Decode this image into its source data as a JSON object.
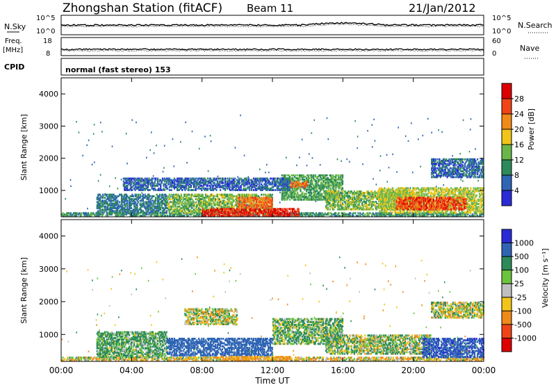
{
  "header": {
    "station": "Zhongshan Station (fitACF)",
    "beam": "Beam 11",
    "date": "21/Jan/2012"
  },
  "status_panels": {
    "nsky_label": "N.Sky",
    "nsearch_label": "N.Search",
    "count_ticks_top": "10^5",
    "count_ticks_bottom": "10^0",
    "freq_label": "Freq.",
    "freq_unit": "[MHz]",
    "freq_ticks": [
      "18",
      "8"
    ],
    "nave_label": "Nave",
    "nave_ticks": [
      "60",
      "0"
    ],
    "cpid_label": "CPID",
    "cpid_value": "normal (fast stereo) 153"
  },
  "colors": {
    "power_scale": [
      "#2a2ad6",
      "#2f65b4",
      "#2d8a5a",
      "#6bb64a",
      "#f0c419",
      "#f08a18",
      "#f04418",
      "#dd0000"
    ],
    "velocity_scale": [
      "#dd0000",
      "#f04418",
      "#f08a18",
      "#f0c419",
      "#bfbfbf",
      "#6bc43c",
      "#2d8a5a",
      "#2f65b4",
      "#2a2ad6"
    ]
  },
  "chart_data": [
    {
      "type": "heatmap",
      "title": "",
      "xlabel": "Time UT",
      "ylabel": "Slant Range [km]",
      "x_ticks": [
        "00:00",
        "04:00",
        "08:00",
        "12:00",
        "16:00",
        "20:00",
        "00:00"
      ],
      "xlim": [
        0,
        24
      ],
      "ylim": [
        180,
        4500
      ],
      "y_ticks": [
        "1000",
        "2000",
        "3000",
        "4000"
      ],
      "colorbar": {
        "label": "Power [dB]",
        "ticks": [
          "4",
          "8",
          "12",
          "16",
          "20",
          "24",
          "28"
        ],
        "range": [
          0,
          30
        ]
      },
      "regions": [
        {
          "t0": 0.0,
          "t1": 24.0,
          "r0": 200,
          "r1": 320,
          "value": 10
        },
        {
          "t0": 2.0,
          "t1": 6.0,
          "r0": 300,
          "r1": 900,
          "value": 8
        },
        {
          "t0": 6.0,
          "t1": 12.0,
          "r0": 300,
          "r1": 900,
          "value": 14
        },
        {
          "t0": 8.0,
          "t1": 13.5,
          "r0": 200,
          "r1": 450,
          "value": 28
        },
        {
          "t0": 10.0,
          "t1": 12.0,
          "r0": 450,
          "r1": 800,
          "value": 24
        },
        {
          "t0": 12.5,
          "t1": 16.0,
          "r0": 700,
          "r1": 1500,
          "value": 12
        },
        {
          "t0": 13.0,
          "t1": 14.0,
          "r0": 1100,
          "r1": 1300,
          "value": 24
        },
        {
          "t0": 15.0,
          "t1": 20.0,
          "r0": 400,
          "r1": 1000,
          "value": 14
        },
        {
          "t0": 18.0,
          "t1": 24.0,
          "r0": 300,
          "r1": 1100,
          "value": 16
        },
        {
          "t0": 19.0,
          "t1": 23.0,
          "r0": 400,
          "r1": 800,
          "value": 26
        },
        {
          "t0": 21.0,
          "t1": 24.0,
          "r0": 1400,
          "r1": 2000,
          "value": 6
        },
        {
          "t0": 3.5,
          "t1": 13.0,
          "r0": 1000,
          "r1": 1400,
          "value": 6
        }
      ]
    },
    {
      "type": "heatmap",
      "title": "",
      "xlabel": "Time UT",
      "ylabel": "Slant Range [km]",
      "x_ticks": [
        "00:00",
        "04:00",
        "08:00",
        "12:00",
        "16:00",
        "20:00",
        "00:00"
      ],
      "xlim": [
        0,
        24
      ],
      "ylim": [
        180,
        4500
      ],
      "y_ticks": [
        "1000",
        "2000",
        "3000",
        "4000"
      ],
      "colorbar": {
        "label": "Velocity [m s⁻¹]",
        "ticks": [
          "-1000",
          "-500",
          "-100",
          "-25",
          "25",
          "100",
          "500",
          "1000"
        ]
      },
      "regions": [
        {
          "t0": 0.0,
          "t1": 24.0,
          "r0": 200,
          "r1": 320,
          "value": -50
        },
        {
          "t0": 2.0,
          "t1": 6.0,
          "r0": 300,
          "r1": 1100,
          "value": 150
        },
        {
          "t0": 6.0,
          "t1": 12.0,
          "r0": 350,
          "r1": 900,
          "value": 800
        },
        {
          "t0": 9.0,
          "t1": 13.0,
          "r0": 200,
          "r1": 350,
          "value": -200
        },
        {
          "t0": 12.0,
          "t1": 16.0,
          "r0": 700,
          "r1": 1500,
          "value": 120
        },
        {
          "t0": 15.0,
          "t1": 21.0,
          "r0": 400,
          "r1": 1000,
          "value": 60
        },
        {
          "t0": 20.5,
          "t1": 24.0,
          "r0": 300,
          "r1": 900,
          "value": 900
        },
        {
          "t0": 21.0,
          "t1": 24.0,
          "r0": 1500,
          "r1": 2000,
          "value": 20
        },
        {
          "t0": 7.0,
          "t1": 10.0,
          "r0": 1300,
          "r1": 1800,
          "value": 15
        }
      ]
    }
  ]
}
